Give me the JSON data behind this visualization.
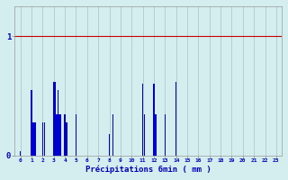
{
  "background_color": "#d4eef0",
  "bar_color": "#0000cc",
  "grid_x_color": "#aacccc",
  "red_line_color": "#cc0000",
  "xlabel": "Précipitations 6min ( mm )",
  "xlabel_color": "#0000bb",
  "tick_color": "#0000bb",
  "ylim": [
    0,
    1.25
  ],
  "xlim": [
    -0.5,
    23.5
  ],
  "yticks": [
    0,
    1
  ],
  "n_hours": 24,
  "bars": [
    [
      0.0,
      0.04
    ],
    [
      1.0,
      0.55
    ],
    [
      1.17,
      0.28
    ],
    [
      1.33,
      0.28
    ],
    [
      2.0,
      0.28
    ],
    [
      2.17,
      0.28
    ],
    [
      3.0,
      0.62
    ],
    [
      3.12,
      0.62
    ],
    [
      3.25,
      0.35
    ],
    [
      3.37,
      0.55
    ],
    [
      3.5,
      0.35
    ],
    [
      3.62,
      0.35
    ],
    [
      4.0,
      0.35
    ],
    [
      4.17,
      0.28
    ],
    [
      5.0,
      0.35
    ],
    [
      8.0,
      0.18
    ],
    [
      8.33,
      0.35
    ],
    [
      11.0,
      0.6
    ],
    [
      11.17,
      0.35
    ],
    [
      12.0,
      0.6
    ],
    [
      12.17,
      0.35
    ],
    [
      13.0,
      0.35
    ],
    [
      14.0,
      0.62
    ]
  ],
  "bar_width": 0.13
}
